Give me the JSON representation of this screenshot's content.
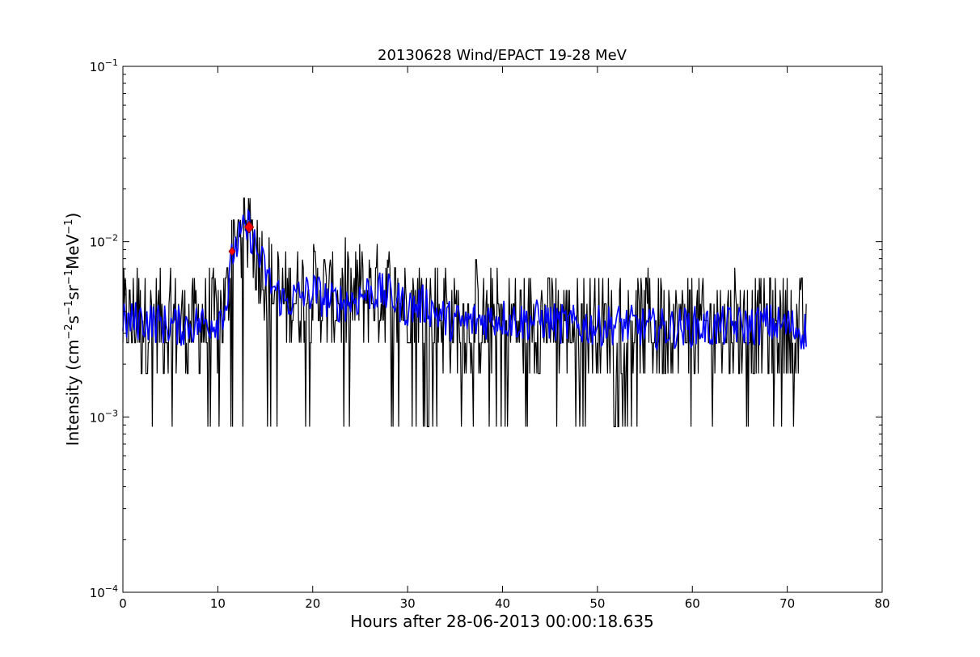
{
  "chart_data": {
    "type": "line",
    "title": "20130628 Wind/EPACT 19-28 MeV",
    "xlabel": "Hours after 28-06-2013 00:00:18.635",
    "ylabel": "Intensity (cm⁻² s⁻¹ sr⁻¹ MeV⁻¹)",
    "ylabel_parts": [
      {
        "t": "Intensity (cm",
        "sup": false
      },
      {
        "t": "−2",
        "sup": true
      },
      {
        "t": "s",
        "sup": false
      },
      {
        "t": "−1",
        "sup": true
      },
      {
        "t": "sr",
        "sup": false
      },
      {
        "t": "−1",
        "sup": true
      },
      {
        "t": "MeV",
        "sup": false
      },
      {
        "t": "−1",
        "sup": true
      },
      {
        "t": ")",
        "sup": false
      }
    ],
    "xlim": [
      0,
      80
    ],
    "ylim": [
      0.0001,
      0.1
    ],
    "yscale": "log",
    "grid": false,
    "xticks": [
      0,
      10,
      20,
      30,
      40,
      50,
      60,
      70,
      80
    ],
    "xtick_labels": [
      "0",
      "10",
      "20",
      "30",
      "40",
      "50",
      "60",
      "70",
      "80"
    ],
    "yticks": [
      0.0001,
      0.001,
      0.01,
      0.1
    ],
    "ytick_labels": [
      {
        "base": "10",
        "exp": "−4"
      },
      {
        "base": "10",
        "exp": "−3"
      },
      {
        "base": "10",
        "exp": "−2"
      },
      {
        "base": "10",
        "exp": "−1"
      }
    ],
    "counting_levels": [
      0.00088,
      0.00177,
      0.00265,
      0.00354,
      0.00442,
      0.0053,
      0.0062,
      0.0071,
      0.0079,
      0.0088,
      0.0097,
      0.0106,
      0.0115,
      0.0133,
      0.0177
    ],
    "series": [
      {
        "kind": "raw",
        "color": "#000000",
        "x_range": [
          0,
          72
        ],
        "typical_range": [
          0.00177,
          0.0053
        ],
        "event_peak": [
          [
            11.0,
            0.0062
          ],
          [
            11.6,
            0.0176
          ],
          [
            12.2,
            0.0133
          ],
          [
            12.7,
            0.0176
          ],
          [
            13.3,
            0.0185
          ],
          [
            14.0,
            0.0115
          ],
          [
            15.0,
            0.0088
          ]
        ]
      },
      {
        "kind": "smoothed",
        "color": "#0000ff",
        "x_range": [
          0,
          72
        ],
        "points": [
          [
            0,
            0.0034
          ],
          [
            2,
            0.0036
          ],
          [
            4,
            0.0034
          ],
          [
            6,
            0.0033
          ],
          [
            8,
            0.0034
          ],
          [
            10,
            0.0036
          ],
          [
            11,
            0.0046
          ],
          [
            11.6,
            0.0088
          ],
          [
            12.4,
            0.0105
          ],
          [
            13.3,
            0.0121
          ],
          [
            14.2,
            0.0085
          ],
          [
            15.5,
            0.0058
          ],
          [
            17,
            0.0045
          ],
          [
            20,
            0.0052
          ],
          [
            22,
            0.0045
          ],
          [
            24,
            0.0046
          ],
          [
            26,
            0.0052
          ],
          [
            28,
            0.005
          ],
          [
            30,
            0.0042
          ],
          [
            32,
            0.0044
          ],
          [
            34,
            0.0036
          ],
          [
            36,
            0.0034
          ],
          [
            38,
            0.0036
          ],
          [
            40,
            0.0037
          ],
          [
            42,
            0.0035
          ],
          [
            44,
            0.0036
          ],
          [
            46,
            0.0034
          ],
          [
            48,
            0.0033
          ],
          [
            50,
            0.0033
          ],
          [
            52,
            0.0034
          ],
          [
            54,
            0.0033
          ],
          [
            56,
            0.0032
          ],
          [
            58,
            0.0032
          ],
          [
            60,
            0.0033
          ],
          [
            62,
            0.0032
          ],
          [
            64,
            0.0033
          ],
          [
            66,
            0.0033
          ],
          [
            68,
            0.0034
          ],
          [
            70,
            0.0033
          ],
          [
            72,
            0.0031
          ]
        ]
      },
      {
        "kind": "markers",
        "color": "#ff0000",
        "marker": "diamond",
        "points": [
          [
            11.5,
            0.0088
          ],
          [
            13.3,
            0.0121
          ]
        ]
      }
    ]
  }
}
